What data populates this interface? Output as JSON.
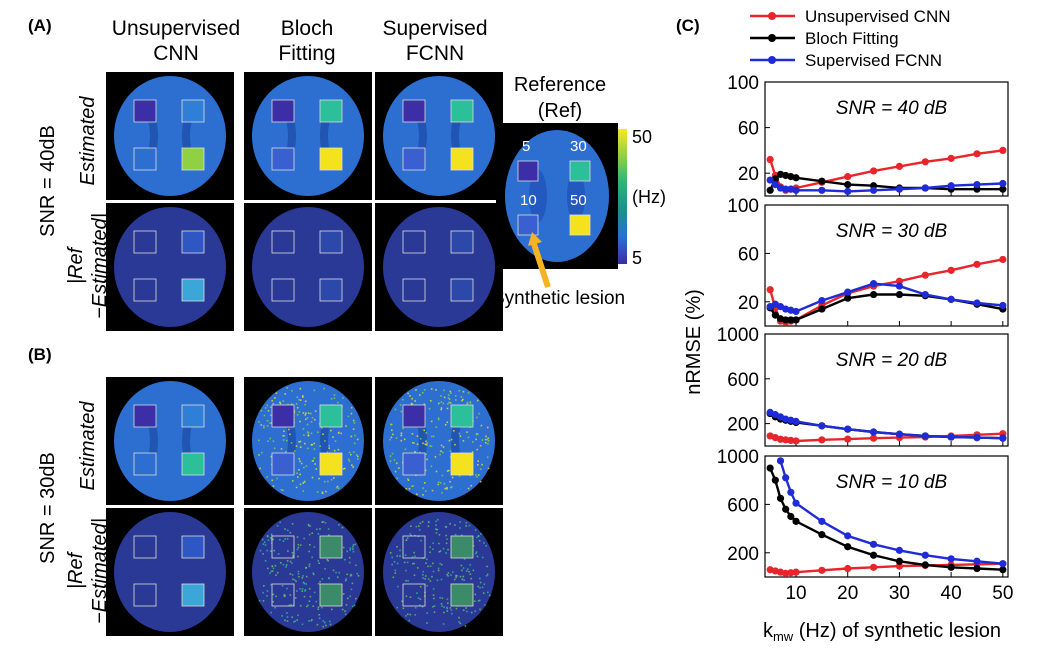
{
  "panels": {
    "A": "(A)",
    "B": "(B)",
    "C": "(C)"
  },
  "columns": [
    {
      "line1": "Unsupervised",
      "line2": "CNN"
    },
    {
      "line1": "Bloch",
      "line2": "Fitting"
    },
    {
      "line1": "Supervised",
      "line2": "FCNN"
    }
  ],
  "rows": {
    "snr40": "SNR = 40dB",
    "snr30": "SNR = 30dB",
    "estimated": "Estimated",
    "diff_line1": "|Ref",
    "diff_line2": "−Estimated|"
  },
  "reference": {
    "title_line1": "Reference",
    "title_line2": "(Ref)",
    "lesion_labels": [
      "5",
      "30",
      "10",
      "50"
    ],
    "colorbar_max": "50",
    "colorbar_min": "5",
    "colorbar_unit": "(Hz)",
    "arrow_label": "Synthetic lesion",
    "arrow_color": "#f5b223"
  },
  "colors": {
    "map_background": "#2c6fd0",
    "lesion_5": "#3b2ea6",
    "lesion_10": "#3a5fd0",
    "lesion_30": "#2bbf9a",
    "lesion_50": "#f4e21f",
    "diff_background": "#2a3896",
    "frame": "#dcdcdc"
  },
  "chart_data": {
    "type": "line",
    "xlabel": "k_mw (Hz) of synthetic lesion",
    "ylabel": "nRMSE (%)",
    "xlim": [
      4,
      51
    ],
    "xticks": [
      10,
      20,
      30,
      40,
      50
    ],
    "legend_position": "top",
    "series_styles": [
      {
        "name": "Unsupervised CNN",
        "color": "#e8252b"
      },
      {
        "name": "Bloch Fitting",
        "color": "#000000"
      },
      {
        "name": "Supervised FCNN",
        "color": "#1f2bd6"
      }
    ],
    "subplots": [
      {
        "title": "SNR = 40 dB",
        "ylim": [
          0,
          100
        ],
        "yticks": [
          20,
          60,
          100
        ],
        "series": [
          {
            "name": "Unsupervised CNN",
            "x": [
              5,
              6,
              7,
              8,
              9,
              10,
              15,
              20,
              25,
              30,
              35,
              40,
              45,
              50
            ],
            "y": [
              32,
              18,
              8,
              5,
              6,
              7,
              12,
              17,
              22,
              26,
              30,
              33,
              37,
              40
            ]
          },
          {
            "name": "Bloch Fitting",
            "x": [
              5,
              6,
              7,
              8,
              9,
              10,
              15,
              20,
              25,
              30,
              35,
              40,
              45,
              50
            ],
            "y": [
              5,
              15,
              19,
              18,
              17,
              16,
              13,
              10,
              9,
              7,
              7,
              6,
              6,
              6
            ]
          },
          {
            "name": "Supervised FCNN",
            "x": [
              5,
              6,
              7,
              8,
              9,
              10,
              15,
              20,
              25,
              30,
              35,
              40,
              45,
              50
            ],
            "y": [
              14,
              10,
              7,
              6,
              6,
              5,
              5,
              4,
              5,
              6,
              7,
              9,
              10,
              11
            ]
          }
        ]
      },
      {
        "title": "SNR = 30 dB",
        "ylim": [
          0,
          100
        ],
        "yticks": [
          20,
          60,
          100
        ],
        "series": [
          {
            "name": "Unsupervised CNN",
            "x": [
              5,
              6,
              7,
              8,
              9,
              10,
              15,
              20,
              25,
              30,
              35,
              40,
              45,
              50
            ],
            "y": [
              30,
              15,
              4,
              3,
              4,
              5,
              17,
              27,
              33,
              37,
              42,
              46,
              51,
              55
            ]
          },
          {
            "name": "Bloch Fitting",
            "x": [
              5,
              6,
              7,
              8,
              9,
              10,
              15,
              20,
              25,
              30,
              35,
              40,
              45,
              50
            ],
            "y": [
              15,
              9,
              6,
              5,
              5,
              5,
              14,
              23,
              26,
              26,
              25,
              22,
              18,
              14
            ]
          },
          {
            "name": "Supervised FCNN",
            "x": [
              5,
              6,
              7,
              8,
              9,
              10,
              15,
              20,
              25,
              30,
              35,
              40,
              45,
              50
            ],
            "y": [
              16,
              18,
              16,
              14,
              13,
              12,
              21,
              28,
              35,
              33,
              26,
              22,
              19,
              17
            ]
          }
        ]
      },
      {
        "title": "SNR = 20 dB",
        "ylim": [
          0,
          1000
        ],
        "yticks": [
          200,
          600,
          1000
        ],
        "series": [
          {
            "name": "Unsupervised CNN",
            "x": [
              5,
              6,
              7,
              8,
              9,
              10,
              15,
              20,
              25,
              30,
              35,
              40,
              45,
              50
            ],
            "y": [
              90,
              75,
              60,
              55,
              50,
              45,
              55,
              62,
              70,
              75,
              80,
              90,
              100,
              110
            ]
          },
          {
            "name": "Bloch Fitting",
            "x": [
              5,
              6,
              7,
              8,
              9,
              10,
              15,
              20,
              25,
              30,
              35,
              40,
              45,
              50
            ],
            "y": [
              290,
              260,
              240,
              230,
              220,
              210,
              180,
              150,
              125,
              105,
              90,
              80,
              75,
              70
            ]
          },
          {
            "name": "Supervised FCNN",
            "x": [
              5,
              6,
              7,
              8,
              9,
              10,
              15,
              20,
              25,
              30,
              35,
              40,
              45,
              50
            ],
            "y": [
              300,
              280,
              260,
              240,
              230,
              220,
              180,
              150,
              125,
              105,
              90,
              80,
              75,
              70
            ]
          }
        ]
      },
      {
        "title": "SNR = 10 dB",
        "ylim": [
          0,
          1000
        ],
        "yticks": [
          200,
          600,
          1000
        ],
        "series": [
          {
            "name": "Unsupervised CNN",
            "x": [
              5,
              6,
              7,
              8,
              9,
              10,
              15,
              20,
              25,
              30,
              35,
              40,
              45,
              50
            ],
            "y": [
              60,
              50,
              40,
              30,
              35,
              40,
              55,
              70,
              80,
              90,
              95,
              100,
              105,
              110
            ]
          },
          {
            "name": "Bloch Fitting",
            "x": [
              5,
              6,
              7,
              8,
              9,
              10,
              15,
              20,
              25,
              30,
              35,
              40,
              45,
              50
            ],
            "y": [
              900,
              800,
              650,
              560,
              500,
              460,
              350,
              250,
              180,
              130,
              100,
              80,
              70,
              60
            ]
          },
          {
            "name": "Supervised FCNN",
            "x": [
              7,
              8,
              9,
              10,
              15,
              20,
              25,
              30,
              35,
              40,
              45,
              50
            ],
            "y": [
              960,
              820,
              700,
              610,
              460,
              340,
              270,
              220,
              180,
              150,
              130,
              110
            ]
          }
        ]
      }
    ]
  }
}
